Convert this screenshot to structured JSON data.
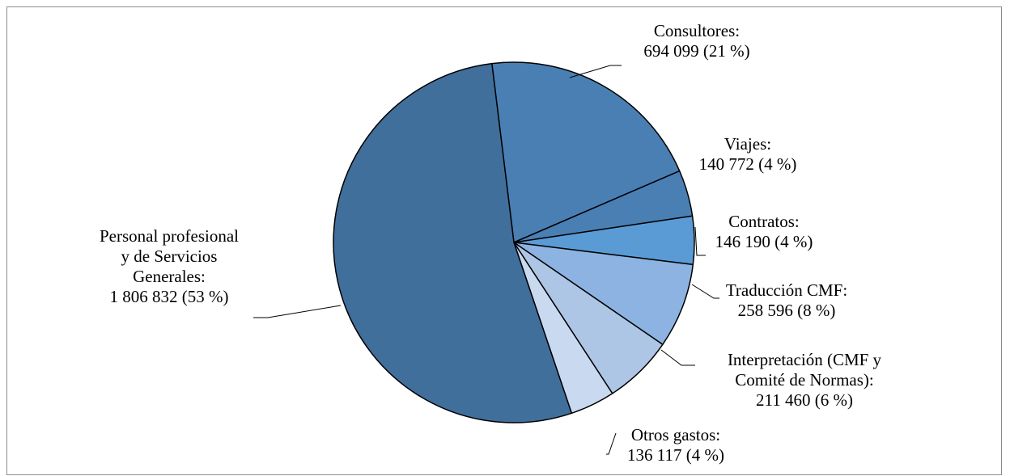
{
  "chart_data": {
    "type": "pie",
    "title": "",
    "start_angle_deg": -7,
    "direction": "clockwise",
    "slices": [
      {
        "name": "Consultores",
        "value": 694099,
        "value_label": "694 099",
        "percent_label": "(21 %)",
        "color": "#4a7fb4",
        "label_lines": [
          "Consultores:",
          "694 099  (21 %)"
        ]
      },
      {
        "name": "Viajes",
        "value": 140772,
        "value_label": "140 772",
        "percent_label": "(4 %)",
        "color": "#4a7fb4",
        "label_lines": [
          "Viajes:",
          "140 772  (4 %)"
        ]
      },
      {
        "name": "Contratos",
        "value": 146190,
        "value_label": "146 190",
        "percent_label": "(4 %)",
        "color": "#5b9bd5",
        "label_lines": [
          "Contratos:",
          "146 190  (4 %)"
        ]
      },
      {
        "name": "Traducción CMF",
        "value": 258596,
        "value_label": "258 596",
        "percent_label": "(8 %)",
        "color": "#8db3e2",
        "label_lines": [
          "Traducción CMF:",
          "258 596  (8 %)"
        ]
      },
      {
        "name": "Interpretación (CMF y Comité de Normas)",
        "value": 211460,
        "value_label": "211 460",
        "percent_label": "(6 %)",
        "color": "#adc6e6",
        "label_lines": [
          "Interpretación (CMF y",
          "Comité de Normas):",
          "211 460  (6 %)"
        ]
      },
      {
        "name": "Otros gastos",
        "value": 136117,
        "value_label": "136 117",
        "percent_label": "(4 %)",
        "color": "#c9d9ef",
        "label_lines": [
          "Otros gastos:",
          "136 117  (4 %)"
        ]
      },
      {
        "name": "Personal profesional y de Servicios Generales",
        "value": 1806832,
        "value_label": "1 806 832",
        "percent_label": "(53 %)",
        "color": "#416f9c",
        "label_lines": [
          "Personal profesional",
          "y de Servicios",
          "Generales:",
          "1 806 832  (53 %)"
        ]
      }
    ]
  }
}
